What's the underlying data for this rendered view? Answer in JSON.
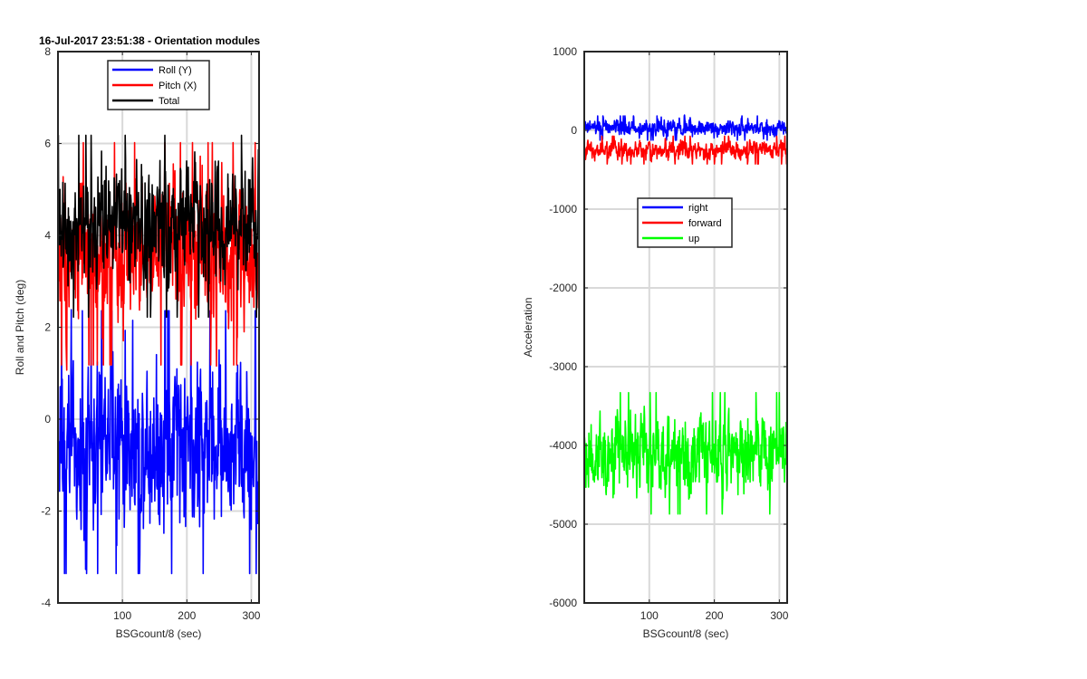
{
  "chart_data": [
    {
      "type": "line",
      "title": "16-Jul-2017 23:51:38 - Orientation modules",
      "xlabel": "BSGcount/8 (sec)",
      "ylabel": "Roll and Pitch (deg)",
      "xlim": [
        0,
        312
      ],
      "ylim": [
        -4,
        8
      ],
      "xticks": [
        100,
        200,
        300
      ],
      "yticks": [
        -4,
        -2,
        0,
        2,
        4,
        6,
        8
      ],
      "grid": true,
      "legend": "top-center",
      "series": [
        {
          "name": "Roll (Y)",
          "color": "#0000ff",
          "mean": -0.5,
          "spread": 1.3,
          "min": -3.8,
          "max": 2.7
        },
        {
          "name": "Pitch (X)",
          "color": "#ff0000",
          "mean": 3.6,
          "spread": 1.1,
          "min": 0.7,
          "max": 6.2
        },
        {
          "name": "Total",
          "color": "#000000",
          "mean": 4.2,
          "spread": 0.9,
          "min": 1.9,
          "max": 7.0
        }
      ]
    },
    {
      "type": "line",
      "title": "",
      "xlabel": "BSGcount/8 (sec)",
      "ylabel": "Acceleration",
      "xlim": [
        0,
        312
      ],
      "ylim": [
        -6000,
        1000
      ],
      "xticks": [
        100,
        200,
        300
      ],
      "yticks": [
        -6000,
        -5000,
        -4000,
        -3000,
        -2000,
        -1000,
        0,
        1000
      ],
      "grid": true,
      "legend": "center",
      "series": [
        {
          "name": "right",
          "color": "#0000ff",
          "mean": 30,
          "spread": 70,
          "min": -150,
          "max": 250
        },
        {
          "name": "forward",
          "color": "#ff0000",
          "mean": -250,
          "spread": 80,
          "min": -550,
          "max": 50
        },
        {
          "name": "up",
          "color": "#00ff00",
          "mean": -4100,
          "spread": 350,
          "min": -5600,
          "max": -3100
        }
      ]
    }
  ]
}
